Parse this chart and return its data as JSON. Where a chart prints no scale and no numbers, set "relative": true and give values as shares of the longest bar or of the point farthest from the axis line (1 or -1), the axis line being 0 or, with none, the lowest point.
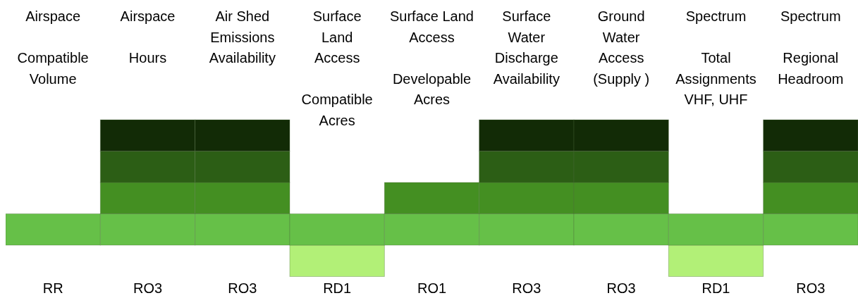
{
  "chart_data": {
    "type": "bar",
    "stacked": true,
    "relative": true,
    "categories": [
      "Airspace\n\nCompatible\nVolume",
      "Airspace\n\nHours",
      "Air Shed\nEmissions\nAvailability",
      "Surface\nLand\nAccess\n\nCompatible\nAcres",
      "Surface Land\nAccess\n\nDevelopable\nAcres",
      "Surface\nWater\nDischarge\nAvailability",
      "Ground\nWater\nAccess\n(Supply )",
      "Spectrum\n\nTotal\nAssignments\nVHF, UHF",
      "Spectrum\n\nRegional\nHeadroom"
    ],
    "series": [
      {
        "color": "#b2f077",
        "values": [
          null,
          null,
          null,
          -0.25,
          null,
          null,
          null,
          -0.25,
          null
        ]
      },
      {
        "color": "#66c048",
        "values": [
          0.25,
          0.25,
          0.25,
          0.25,
          0.25,
          0.25,
          0.25,
          0.25,
          0.25
        ]
      },
      {
        "color": "#448f22",
        "values": [
          null,
          0.25,
          0.25,
          null,
          0.25,
          0.25,
          0.25,
          null,
          0.25
        ]
      },
      {
        "color": "#2c5e15",
        "values": [
          null,
          0.25,
          0.25,
          null,
          null,
          0.25,
          0.25,
          null,
          0.25
        ]
      },
      {
        "color": "#122b06",
        "values": [
          null,
          0.25,
          0.25,
          null,
          null,
          0.25,
          0.25,
          null,
          0.25
        ]
      }
    ],
    "annotations": [
      "RR",
      "RO3",
      "RO3",
      "RD1",
      "RO1",
      "RO3",
      "RO3",
      "RD1",
      "RO3"
    ]
  }
}
